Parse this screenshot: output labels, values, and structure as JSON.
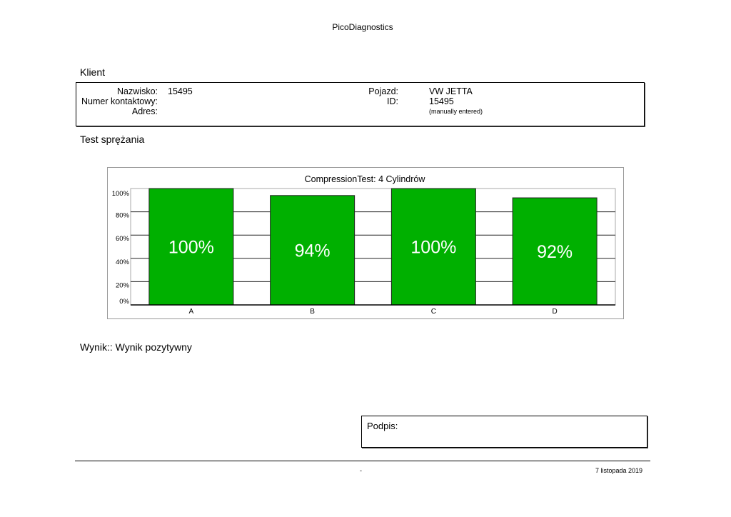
{
  "header": {
    "title": "PicoDiagnostics"
  },
  "client": {
    "section_title": "Klient",
    "surname_label": "Nazwisko:",
    "surname_value": "15495",
    "contact_label": "Numer kontaktowy:",
    "address_label": "Adres:",
    "vehicle_label": "Pojazd:",
    "vehicle_value": "VW JETTA",
    "id_label": "ID:",
    "id_value": "15495",
    "id_note": "(manually entered)"
  },
  "test": {
    "section_title": "Test sprężania"
  },
  "chart_data": {
    "type": "bar",
    "title": "CompressionTest: 4 Cylindrów",
    "categories": [
      "A",
      "B",
      "C",
      "D"
    ],
    "values": [
      100,
      94,
      100,
      92
    ],
    "value_labels": [
      "100%",
      "94%",
      "100%",
      "92%"
    ],
    "ylim": [
      0,
      100
    ],
    "yticks": [
      0,
      20,
      40,
      60,
      80,
      100
    ],
    "ytick_labels": [
      "0%",
      "20%",
      "40%",
      "60%",
      "80%",
      "100%"
    ],
    "grid": true,
    "bar_color": "#00b000",
    "xlabel": "",
    "ylabel": ""
  },
  "result": {
    "text": "Wynik:: Wynik pozytywny"
  },
  "signature": {
    "label": "Podpis:"
  },
  "footer": {
    "center": "-",
    "date": "7 listopada 2019"
  }
}
